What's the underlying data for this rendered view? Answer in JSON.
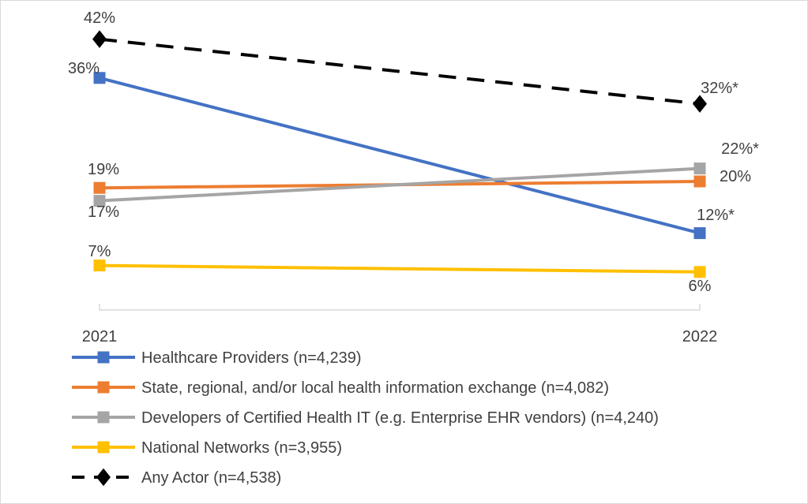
{
  "chart_data": {
    "type": "line",
    "title": "",
    "xlabel": "",
    "ylabel": "",
    "categories": [
      "2021",
      "2022"
    ],
    "ylim": [
      0,
      45
    ],
    "grid": false,
    "legend_position": "bottom",
    "series": [
      {
        "name": "Healthcare Providers (n=4,239)",
        "values": [
          36,
          12
        ],
        "labels": [
          "36%",
          "12%*"
        ],
        "color": "#4472C4",
        "marker": "square",
        "dash": false
      },
      {
        "name": "State, regional, and/or local health information exchange (n=4,082)",
        "values": [
          19,
          20
        ],
        "labels": [
          "19%",
          "20%"
        ],
        "color": "#ED7D31",
        "marker": "square",
        "dash": false
      },
      {
        "name": "Developers of Certified Health IT  (e.g. Enterprise EHR vendors) (n=4,240)",
        "values": [
          17,
          22
        ],
        "labels": [
          "17%",
          "22%*"
        ],
        "color": "#A5A5A5",
        "marker": "square",
        "dash": false
      },
      {
        "name": "National Networks (n=3,955)",
        "values": [
          7,
          6
        ],
        "labels": [
          "7%",
          "6%"
        ],
        "color": "#FFC000",
        "marker": "square",
        "dash": false
      },
      {
        "name": "Any Actor (n=4,538)",
        "values": [
          42,
          32
        ],
        "labels": [
          "42%",
          "32%*"
        ],
        "color": "#000000",
        "marker": "diamond",
        "dash": true
      }
    ]
  }
}
